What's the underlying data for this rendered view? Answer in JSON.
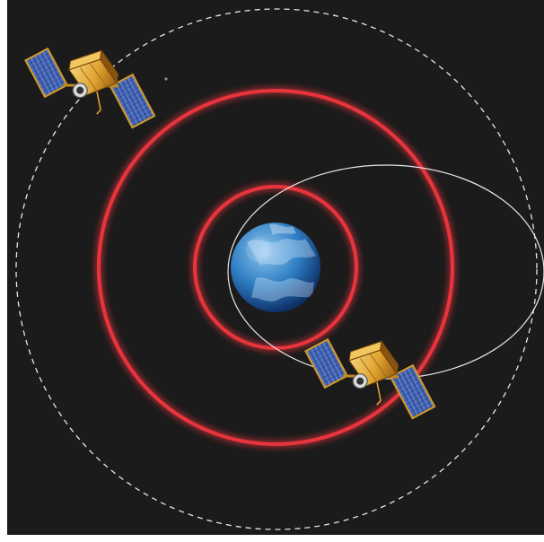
{
  "scene": {
    "background_color": "#1b1b1b",
    "frame_color": "#ffffff",
    "colors": {
      "earth_light": "#8fc6ee",
      "earth_mid": "#2f7fc4",
      "earth_dark": "#0c2f66",
      "van_allen_belt": "#e8343c",
      "orbit_line": "#e6e6e6",
      "satellite_body": "#e0a431",
      "solar_panel": "#3d61b9",
      "solar_panel_frame": "#d59a24"
    }
  },
  "elements": {
    "earth": {
      "icon": "earth-globe"
    },
    "inner_belt": {
      "icon": "radiation-belt-ring"
    },
    "outer_belt": {
      "icon": "radiation-belt-ring"
    },
    "geostationary_orbit": {
      "icon": "dashed-circular-orbit"
    },
    "elliptical_orbit": {
      "icon": "elliptical-orbit"
    },
    "satellites": [
      {
        "icon": "satellite-icon"
      },
      {
        "icon": "satellite-icon"
      }
    ]
  }
}
